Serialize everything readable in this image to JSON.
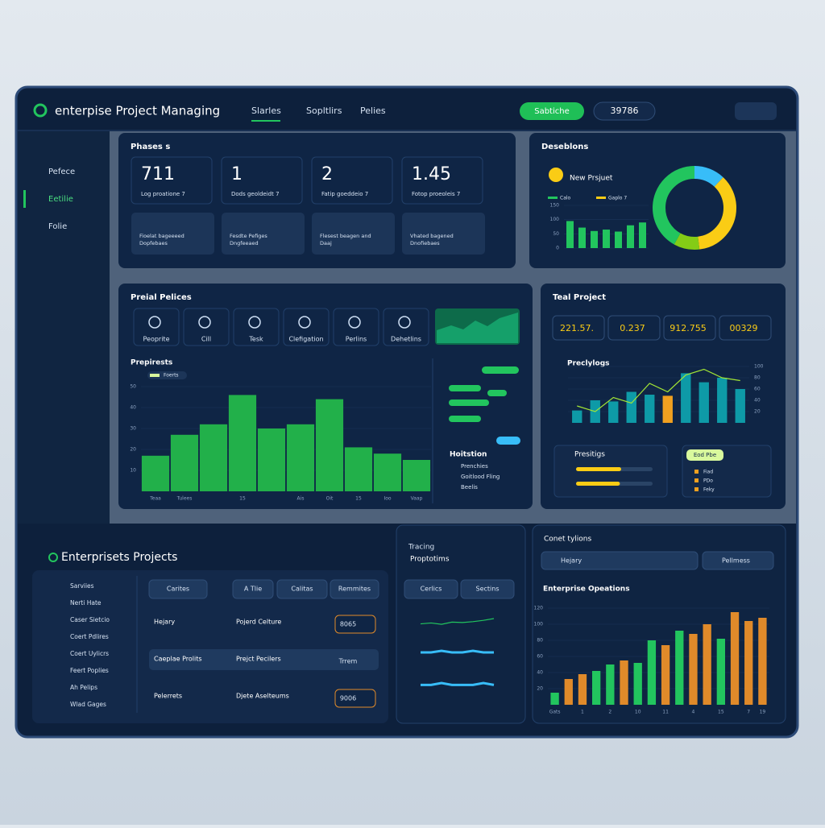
{
  "header": {
    "title": "enterpise Project Managing",
    "nav": [
      "Slarles",
      "Sopltlirs",
      "Pelies"
    ],
    "button": "Sabtiche",
    "counter": "39786"
  },
  "sidebar": [
    "Pefece",
    "Eetilie",
    "Folie"
  ],
  "phases": {
    "title": "Phases s",
    "stats": [
      {
        "value": 711,
        "label": "Log proatione 7"
      },
      {
        "value": 1,
        "label": "Dods geoldeidt 7"
      },
      {
        "value": 2,
        "label": "Fatip goeddeio 7"
      },
      {
        "value": 1.45,
        "label": "Fotop proeoleis 7"
      }
    ],
    "cards": [
      [
        "Fioelat bageeeed",
        "Dopfebaes"
      ],
      [
        "Fesdte Pefiges",
        "Dngfeeaed"
      ],
      [
        "Flesest beagen and",
        "Daaj"
      ],
      [
        "Vhated bagened",
        "Dnofiebaes"
      ]
    ]
  },
  "descriptions": {
    "title": "Deseblons",
    "subtitle": "New Prsjuet",
    "legend": [
      "Calo",
      "Gaplo 7"
    ],
    "chart": {
      "type": "bar",
      "values": [
        95,
        72,
        60,
        65,
        58,
        80,
        90
      ],
      "ylim": [
        0,
        150
      ],
      "yticks": [
        0,
        50,
        100,
        150
      ],
      "color": "#22c55e"
    },
    "donut": {
      "type": "pie",
      "values": [
        12,
        36,
        10,
        42
      ],
      "colors": [
        "#38bdf8",
        "#facc15",
        "#84cc16",
        "#22c55e"
      ]
    }
  },
  "policies": {
    "title": "Preial Pelices",
    "tools": [
      "Peoprite",
      "Cill",
      "Tesk",
      "Clefigation",
      "Perlins",
      "Dehetlins"
    ],
    "chart": {
      "type": "bar",
      "title": "Prepirests",
      "legend": "Foerts",
      "categories": [
        "Teaa",
        "Tulees",
        null,
        "15",
        null,
        "Ais",
        "Oit",
        "15",
        "Ioo",
        "Vaap"
      ],
      "values": [
        17,
        27,
        32,
        46,
        30,
        32,
        44,
        21,
        18,
        15
      ],
      "ylim": [
        0,
        50
      ],
      "yticks": [
        10,
        20,
        30,
        40,
        50
      ],
      "color": "#22b04a"
    },
    "list_title": "Hoitstion",
    "list": [
      "Prenchies",
      "Goitlood Fling",
      "Beelis"
    ]
  },
  "teal": {
    "title": "Teal Project",
    "boxes": [
      "221.57.",
      "0.237",
      "912.755",
      "00329"
    ],
    "chart": {
      "type": "bar",
      "title": "Preclylogs",
      "values": [
        22,
        40,
        38,
        55,
        50,
        48,
        88,
        72,
        80,
        60
      ],
      "line": [
        30,
        20,
        45,
        35,
        70,
        55,
        85,
        95,
        80,
        75
      ],
      "ylim": [
        0,
        100
      ],
      "yticks": [
        20,
        40,
        60,
        80,
        100
      ],
      "bar_colors": [
        "#0e9aa7",
        "#0e9aa7",
        "#0e9aa7",
        "#0e9aa7",
        "#0e9aa7",
        "#f0a020",
        "#0e9aa7",
        "#0e9aa7",
        "#0e9aa7",
        "#0e9aa7"
      ]
    },
    "card_title": "Presitigs",
    "progress": [
      70,
      68
    ],
    "legend_title": "Eod Pbe",
    "legend": [
      "Fiad",
      "PDo",
      "Feky"
    ]
  },
  "projects": {
    "title": "Enterprisets Projects",
    "menu": [
      "Sarviies",
      "Nerti Hate",
      "Caser Sietcio",
      "Coert Pdlires",
      "Coert Uylicrs",
      "Feert Poplies",
      "Ah Pelips",
      "Wlad Gages"
    ],
    "buttons": [
      "Carites",
      "A Tlie",
      "Calitas",
      "Remmites"
    ],
    "rows": [
      [
        "Hejary",
        "Pojerd Celture",
        "8065"
      ],
      [
        "Caeplae Prolits",
        "Prejct Pecilers",
        "Trrem"
      ],
      [
        "Pelerrets",
        "Djete Aselteums",
        "9006"
      ]
    ]
  },
  "tracing": {
    "title": "Tracing",
    "subtitle": "Proptotims",
    "buttons": [
      "Cerlics",
      "Sectins"
    ],
    "lines": [
      [
        10,
        12,
        9,
        14,
        13,
        15,
        18,
        22
      ],
      [
        5,
        5,
        6,
        5,
        5,
        6,
        5,
        5
      ],
      [
        4,
        4,
        5,
        4,
        4,
        4,
        5,
        4
      ]
    ]
  },
  "operations": {
    "title": "Conet tylions",
    "dropdowns": [
      "Hejary",
      "Pellmess"
    ],
    "chart": {
      "type": "bar",
      "title": "Enterprise Opeations",
      "categories": [
        "Gats",
        null,
        "1",
        null,
        "2",
        null,
        "10",
        null,
        "11",
        null,
        "4",
        null,
        "15",
        null,
        "7",
        "19"
      ],
      "values": [
        15,
        32,
        38,
        42,
        50,
        55,
        52,
        80,
        74,
        92,
        88,
        100,
        82,
        115,
        104,
        108
      ],
      "ylim": [
        0,
        120
      ],
      "yticks": [
        20,
        40,
        60,
        80,
        100,
        120
      ],
      "bar_colors": [
        "#22c55e",
        "#e08a2a",
        "#e08a2a",
        "#22c55e",
        "#22c55e",
        "#e08a2a",
        "#22c55e",
        "#22c55e",
        "#e08a2a",
        "#22c55e",
        "#e08a2a",
        "#e08a2a",
        "#22c55e",
        "#e08a2a",
        "#e08a2a",
        "#e08a2a"
      ]
    }
  }
}
